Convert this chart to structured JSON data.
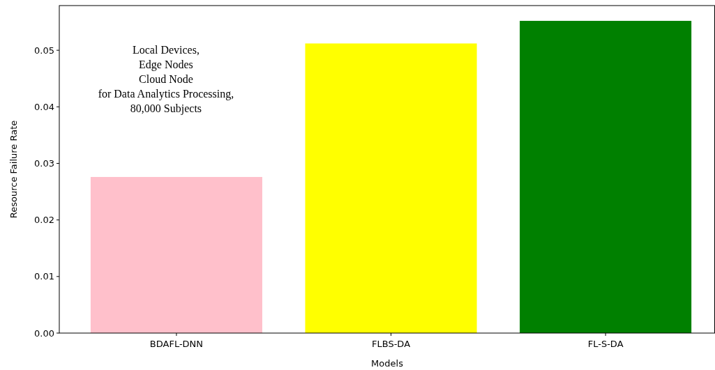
{
  "chart_data": {
    "type": "bar",
    "xlabel": "Models",
    "ylabel": "Resource Failure Rate",
    "categories": [
      "BDAFL-DNN",
      "FLBS-DA",
      "FL-S-DA"
    ],
    "values": [
      0.0276,
      0.0512,
      0.0552
    ],
    "colors": [
      "#ffc0cb",
      "#ffff00",
      "#008000"
    ],
    "ylim": [
      0,
      0.0579
    ],
    "yticks": [
      {
        "value": 0,
        "label": "0.00"
      },
      {
        "value": 0.01,
        "label": "0.01"
      },
      {
        "value": 0.02,
        "label": "0.02"
      },
      {
        "value": 0.03,
        "label": "0.03"
      },
      {
        "value": 0.04,
        "label": "0.04"
      },
      {
        "value": 0.05,
        "label": "0.05"
      }
    ],
    "annotations": [
      "Local Devices,\nEdge Nodes\nCloud Node\nfor Data Analytics Processing,\n80,000 Subjects"
    ],
    "grid": false
  }
}
